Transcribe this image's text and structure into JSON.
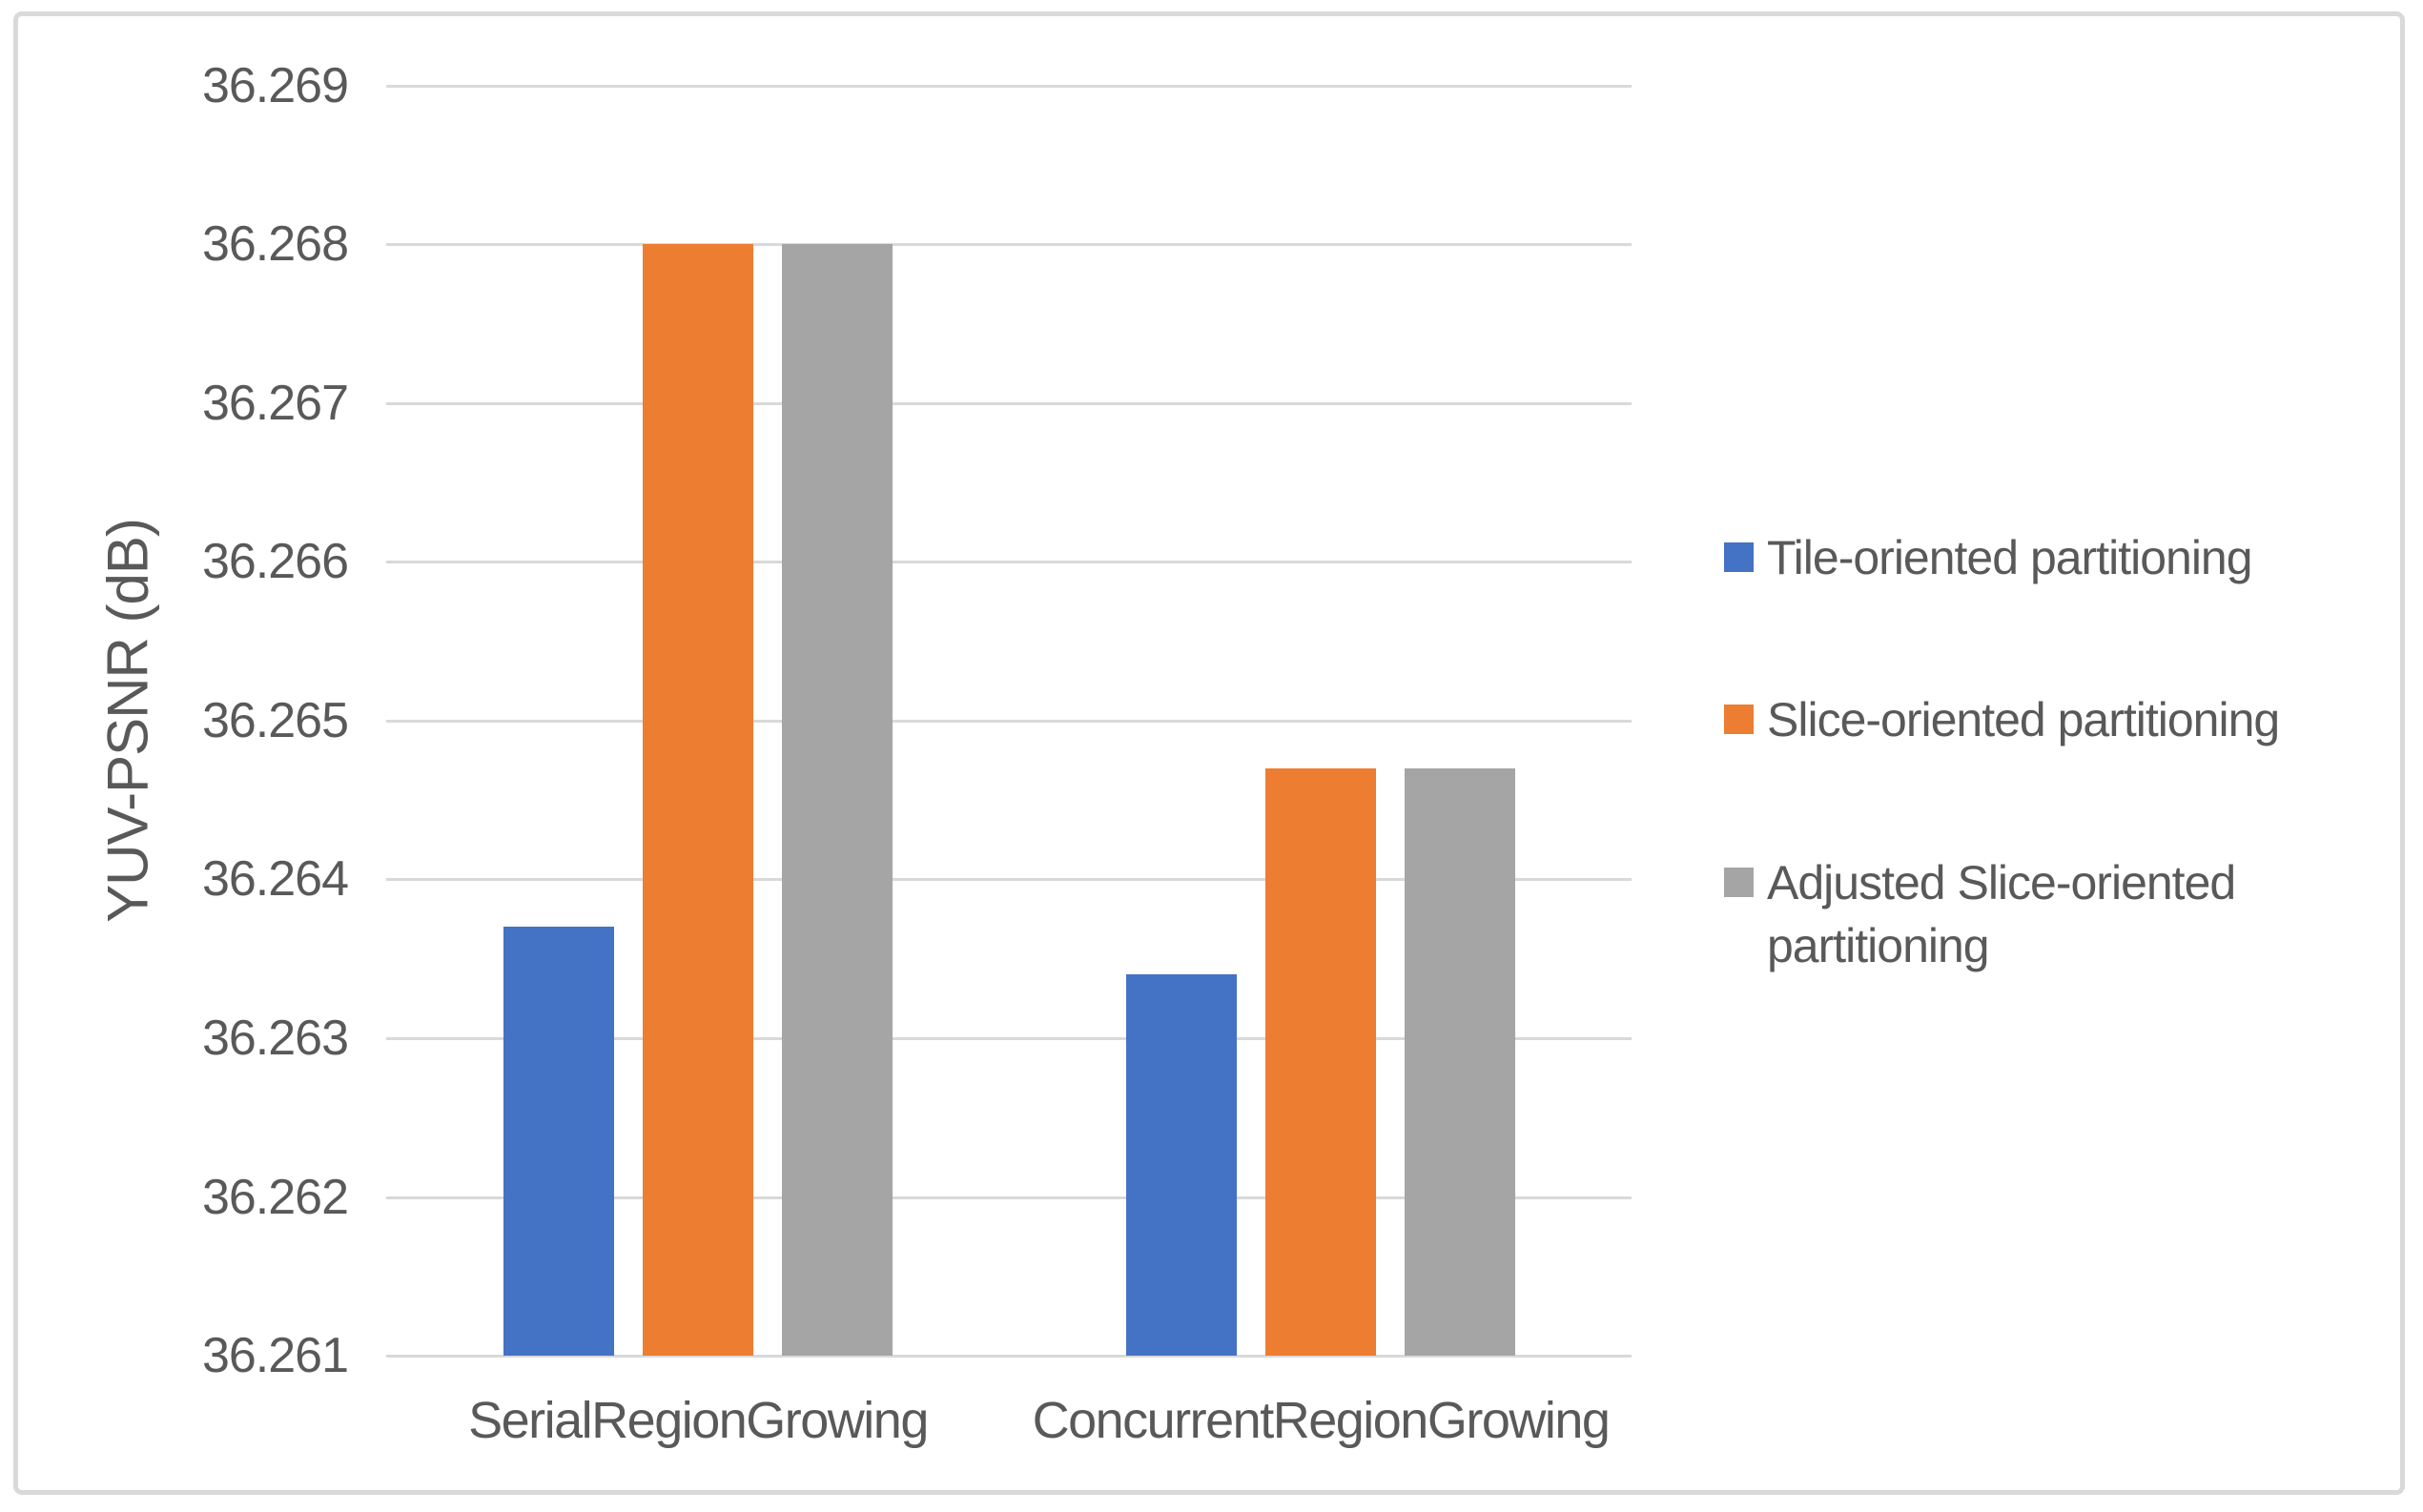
{
  "chart_data": {
    "type": "bar",
    "title": "",
    "xlabel": "",
    "ylabel": "YUV-PSNR (dB)",
    "categories": [
      "SerialRegionGrowing",
      "ConcurrentRegionGrowing"
    ],
    "series": [
      {
        "name": "Tile-oriented partitioning",
        "color": "#4472C4",
        "values": [
          36.2637,
          36.2634
        ]
      },
      {
        "name": "Slice-oriented partitioning",
        "color": "#ED7D31",
        "values": [
          36.268,
          36.2647
        ]
      },
      {
        "name": "Adjusted Slice-oriented partitioning",
        "color": "#A5A5A5",
        "values": [
          36.268,
          36.2647
        ]
      }
    ],
    "ylim": [
      36.261,
      36.269
    ],
    "ytick_step": 0.001,
    "ytick_labels": [
      "36.261",
      "36.262",
      "36.263",
      "36.264",
      "36.265",
      "36.266",
      "36.267",
      "36.268",
      "36.269"
    ],
    "grid": true,
    "legend_position": "right",
    "colors": {
      "background": "#FFFFFF",
      "gridline": "#D9D9D9",
      "border": "#D9D9D9",
      "text": "#595959"
    }
  }
}
